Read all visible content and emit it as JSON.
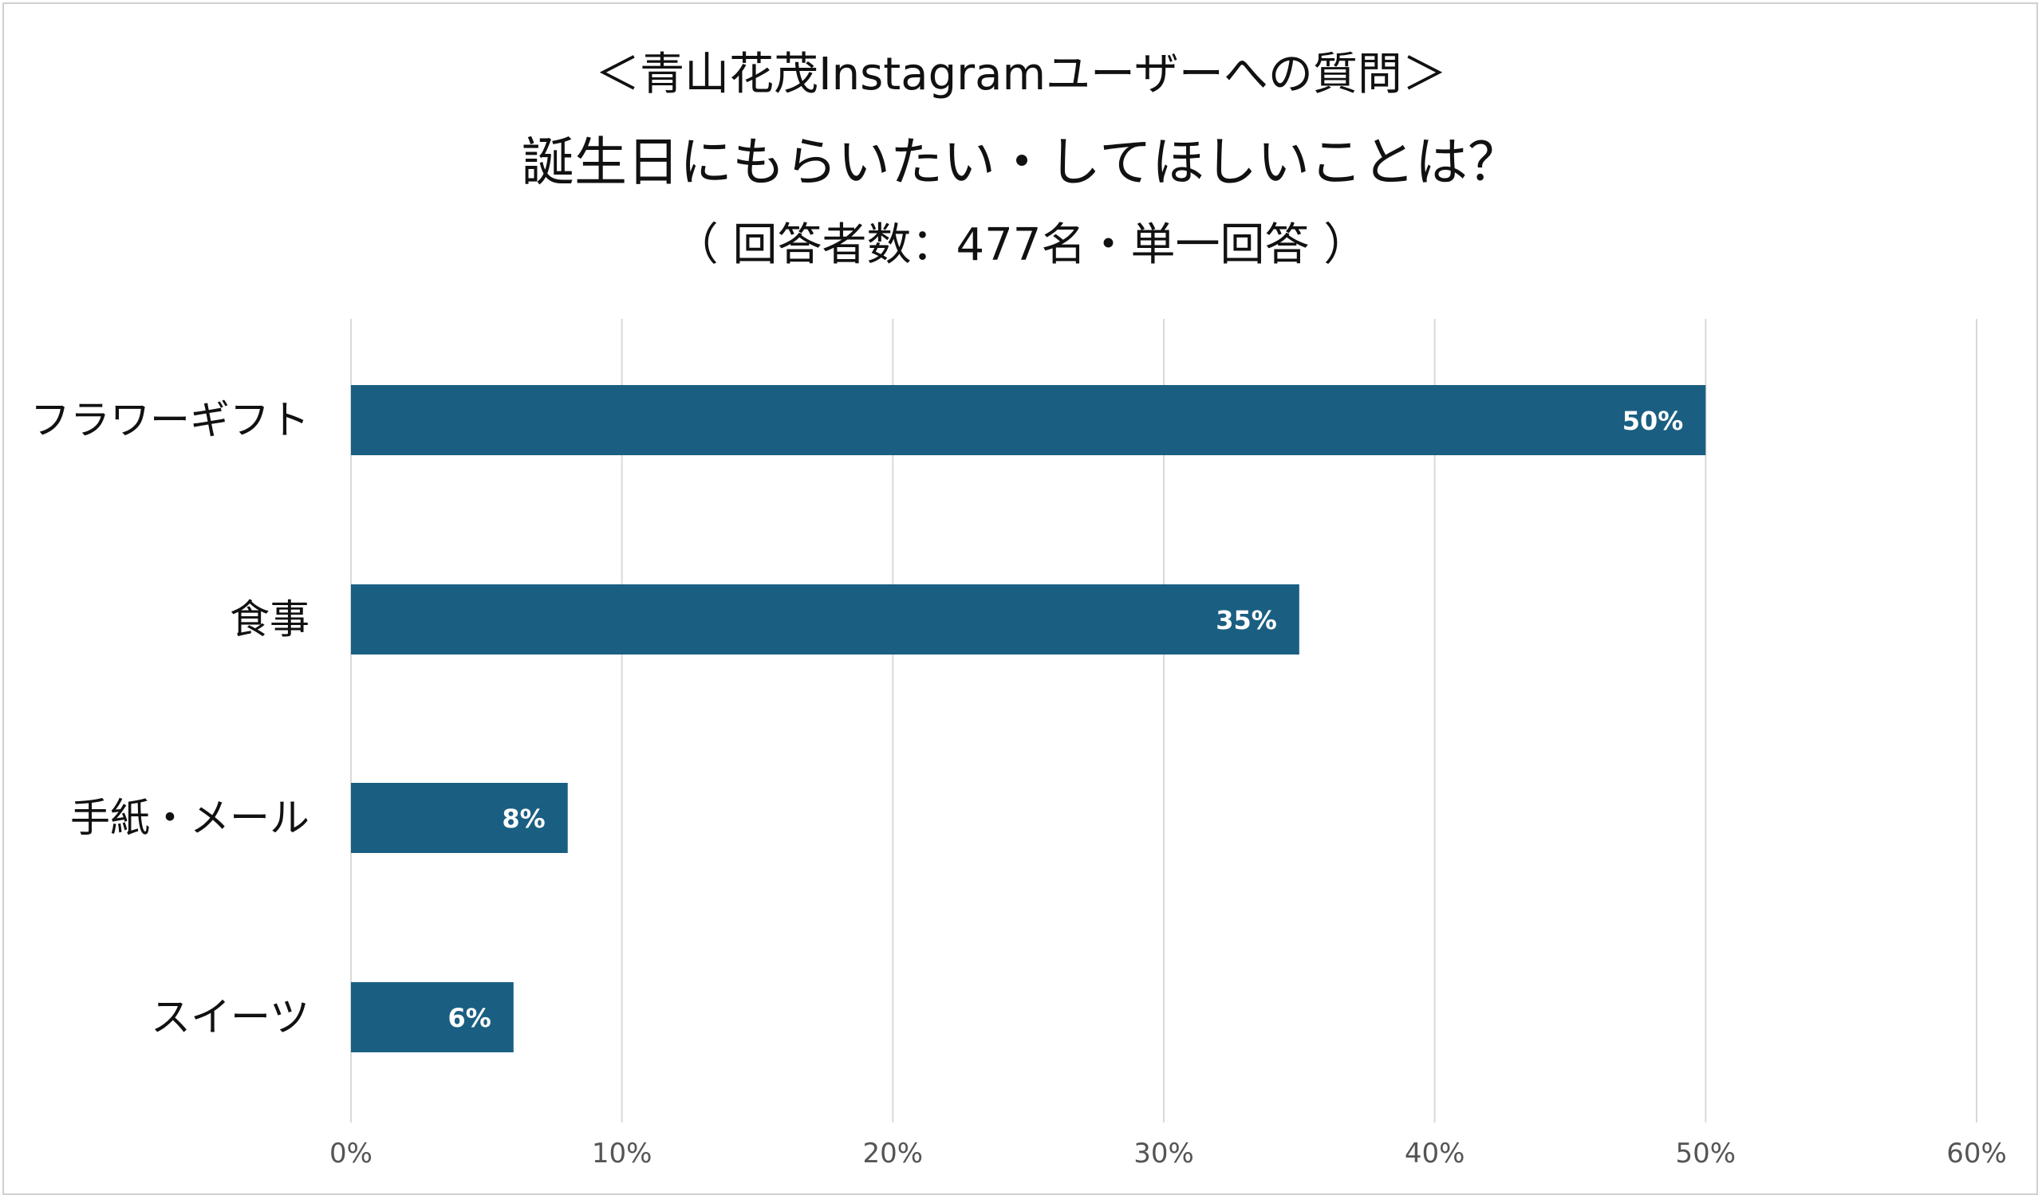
{
  "chart_data": {
    "type": "bar",
    "orientation": "horizontal",
    "title_lines": [
      "＜青山花茂Instagramユーザーへの質問＞",
      "誕生日にもらいたい・してほしいことは？",
      "（ 回答者数：477名・単一回答 ）"
    ],
    "categories": [
      "フラワーギフト",
      "食事",
      "手紙・メール",
      "スイーツ"
    ],
    "values": [
      50,
      35,
      8,
      6
    ],
    "data_labels": [
      "50%",
      "35%",
      "8%",
      "6%"
    ],
    "xlim": [
      0,
      60
    ],
    "x_ticks": [
      0,
      10,
      20,
      30,
      40,
      50,
      60
    ],
    "x_tick_labels": [
      "0%",
      "10%",
      "20%",
      "30%",
      "40%",
      "50%",
      "60%"
    ],
    "grid": "vertical",
    "legend": "none",
    "bar_color": "#1a5f82",
    "grid_color": "#d9d9d9"
  }
}
